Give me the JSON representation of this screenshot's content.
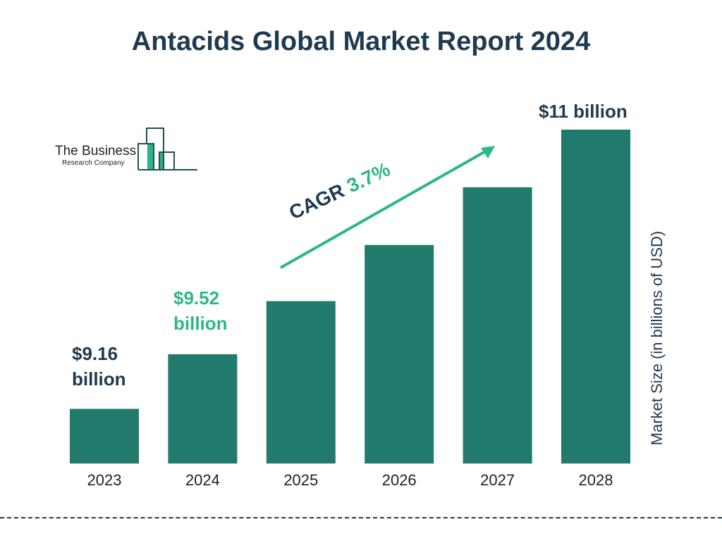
{
  "chart_data": {
    "type": "bar",
    "title": "Antacids Global Market Report 2024",
    "categories": [
      "2023",
      "2024",
      "2025",
      "2026",
      "2027",
      "2028"
    ],
    "values": [
      9.16,
      9.52,
      9.87,
      10.24,
      10.62,
      11.0
    ],
    "data_labels": {
      "2023": "$9.16 billion",
      "2024": "$9.52 billion",
      "2028": "$11 billion"
    },
    "ylabel": "Market Size (in billions of USD)",
    "xlabel": "",
    "ylim": [
      8.8,
      11.0
    ],
    "grid": false,
    "annotation": {
      "prefix": "CAGR",
      "value": "3.7%"
    },
    "colors": {
      "bar": "#217a6b",
      "title": "#1f3a4f",
      "highlight": "#2db784"
    }
  },
  "labels": {
    "l2023a": "$9.16",
    "l2023b": "billion",
    "l2024a": "$9.52",
    "l2024b": "billion",
    "l2028": "$11 billion"
  },
  "logo": {
    "line1": "The Business",
    "line2": "Research Company"
  }
}
